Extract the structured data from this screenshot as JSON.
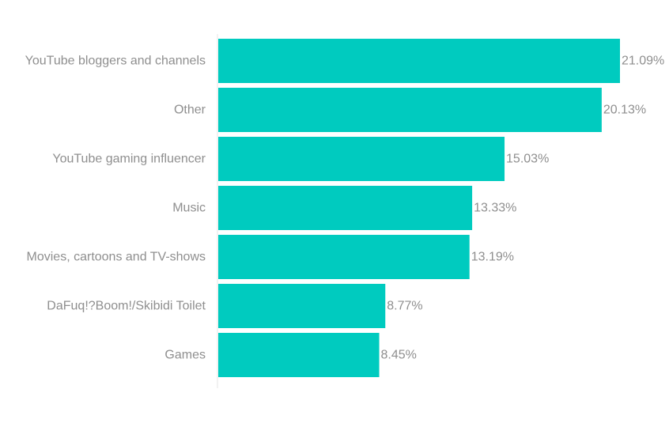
{
  "chart_data": {
    "type": "bar",
    "orientation": "horizontal",
    "categories": [
      "YouTube bloggers and channels",
      "Other",
      "YouTube gaming influencer",
      "Music",
      "Movies, cartoons and TV-shows",
      "DaFuq!?Boom!/Skibidi Toilet",
      "Games"
    ],
    "values": [
      21.09,
      20.13,
      15.03,
      13.33,
      13.19,
      8.77,
      8.45
    ],
    "value_labels": [
      "21.09%",
      "20.13%",
      "15.03%",
      "13.33%",
      "13.19%",
      "8.77%",
      "8.45%"
    ],
    "xlim": [
      0,
      21.09
    ],
    "bar_color": "#00cbbf",
    "label_color": "#8f8f8f",
    "axis_color": "#e6e6e6",
    "grid": false
  }
}
